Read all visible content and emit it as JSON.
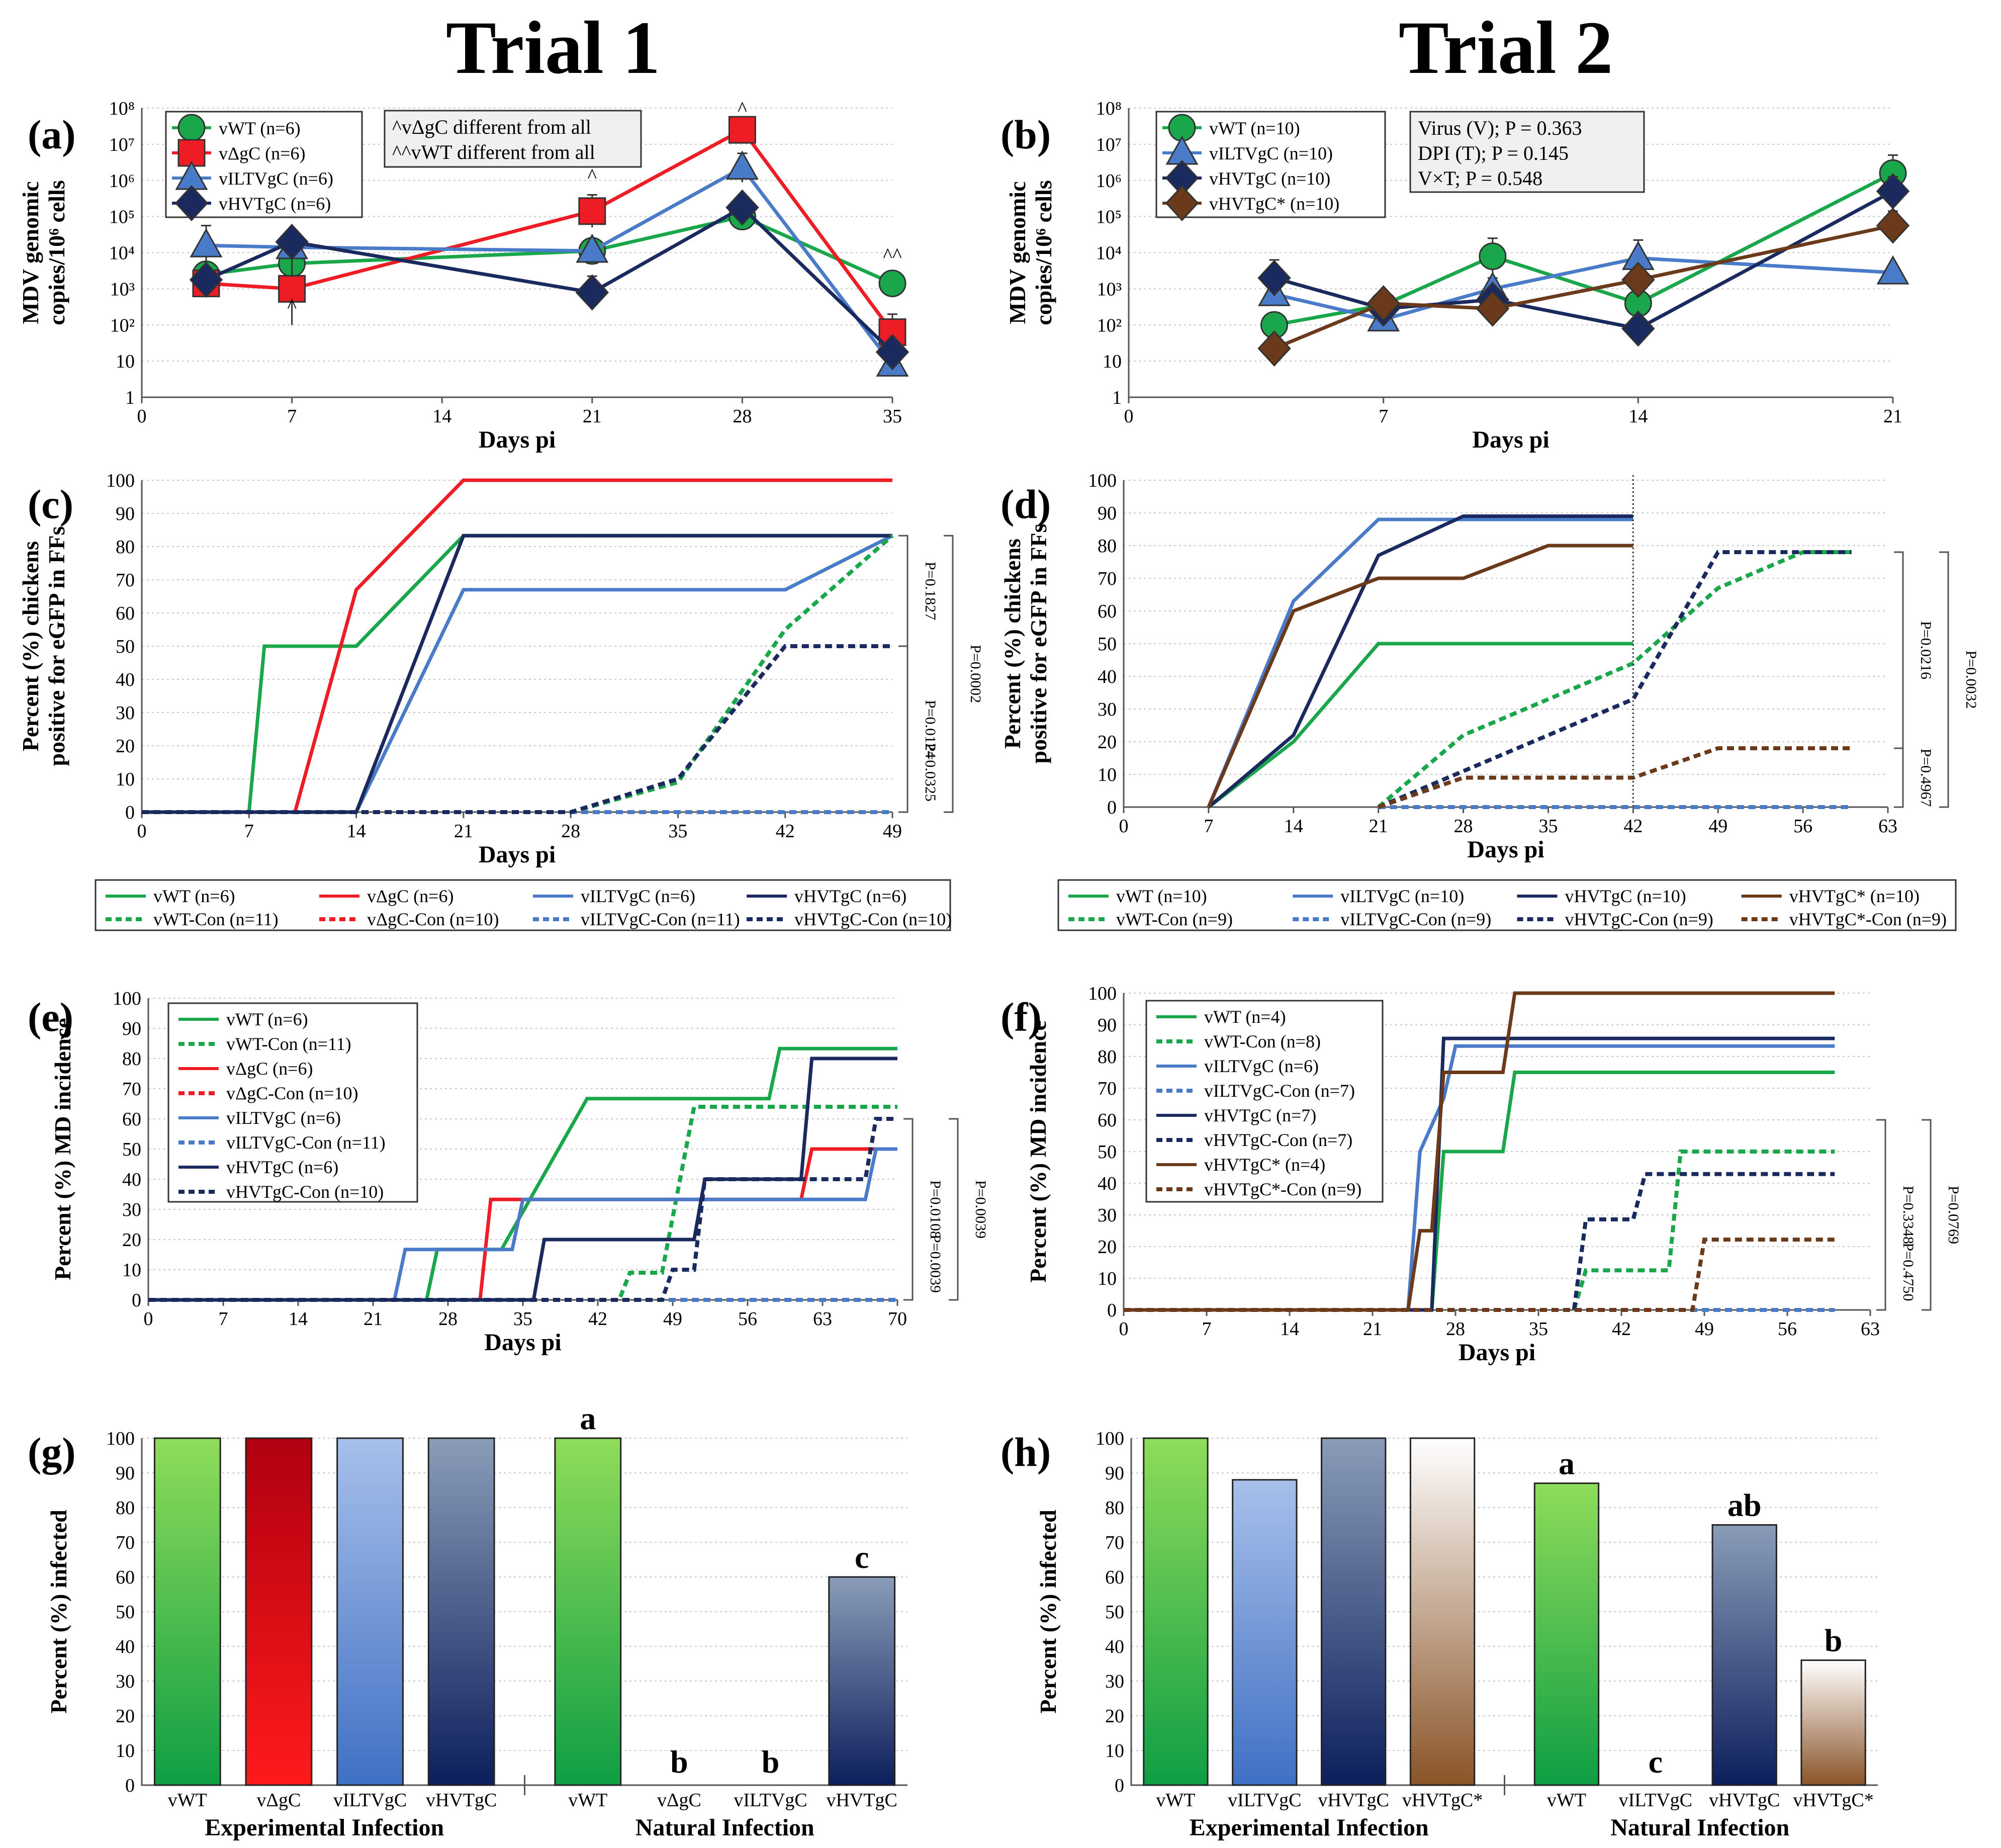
{
  "trial_titles": [
    "Trial 1",
    "Trial 2"
  ],
  "colors": {
    "vWT": "#1aa64a",
    "vDgC": "#ee1c24",
    "vILTVgC": "#4a7bc8",
    "vHVTgC": "#1a2a5e",
    "vHVTgCstar": "#6b3a1a"
  },
  "chart_data": [
    {
      "panel": "(a)",
      "type": "line",
      "scale": "log",
      "xlabel": "Days pi",
      "ylabel": [
        "MDV genomic",
        "copies/10⁶ cells"
      ],
      "xlim": [
        0,
        35
      ],
      "xticks": [
        0,
        7,
        14,
        21,
        28,
        35
      ],
      "yticks": [
        "1",
        "10",
        "10²",
        "10³",
        "10⁴",
        "10⁵",
        "10⁶",
        "10⁷",
        "10⁸"
      ],
      "ylim_log10": [
        0,
        8
      ],
      "series": [
        {
          "name": "vWT (n=6)",
          "key": "vWT",
          "marker": "circle",
          "x": [
            3,
            7,
            21,
            28,
            35
          ],
          "y": [
            3.4,
            3.7,
            4.05,
            5.0,
            3.15
          ],
          "err": [
            0.2,
            0.3,
            0.2,
            0.2,
            0.2
          ]
        },
        {
          "name": "vΔgC (n=6)",
          "key": "vDgC",
          "marker": "square",
          "x": [
            3,
            7,
            21,
            28,
            35
          ],
          "y": [
            3.15,
            3.0,
            5.15,
            7.4,
            1.8
          ],
          "err": [
            0.2,
            1.0,
            0.45,
            0.3,
            0.5
          ]
        },
        {
          "name": "vILTVgC (n=6)",
          "key": "vILTVgC",
          "marker": "triangle",
          "x": [
            3,
            7,
            21,
            28,
            35
          ],
          "y": [
            4.2,
            4.15,
            4.05,
            6.35,
            0.9
          ],
          "err": [
            0.55,
            0.2,
            0.25,
            0.4,
            0.2
          ]
        },
        {
          "name": "vHVTgC (n=6)",
          "key": "vHVTgC",
          "marker": "diamond",
          "x": [
            3,
            7,
            21,
            28,
            35
          ],
          "y": [
            3.25,
            4.3,
            2.9,
            5.25,
            1.25
          ],
          "err": [
            0.2,
            0.3,
            0.45,
            0.3,
            0.2
          ]
        }
      ],
      "annotations": [
        {
          "text": "^",
          "x": 7,
          "y": 2.35
        },
        {
          "text": "^",
          "x": 21,
          "y": 5.95
        },
        {
          "text": "^",
          "x": 28,
          "y": 7.8
        },
        {
          "text": "^^",
          "x": 35,
          "y": 3.75
        }
      ],
      "note": [
        "^vΔgC different from all",
        "^^vWT different from all"
      ]
    },
    {
      "panel": "(b)",
      "type": "line",
      "scale": "log",
      "xlabel": "Days pi",
      "ylabel": [
        "MDV genomic",
        "copies/10⁶ cells"
      ],
      "xlim": [
        0,
        21
      ],
      "xticks": [
        0,
        7,
        14,
        21
      ],
      "yticks": [
        "1",
        "10",
        "10²",
        "10³",
        "10⁴",
        "10⁵",
        "10⁶",
        "10⁷",
        "10⁸"
      ],
      "ylim_log10": [
        0,
        8
      ],
      "series": [
        {
          "name": "vWT (n=10)",
          "key": "vWT",
          "marker": "circle",
          "x": [
            4,
            7,
            10,
            14,
            21
          ],
          "y": [
            2.0,
            2.55,
            3.9,
            2.6,
            6.2
          ],
          "err": [
            0.3,
            0.3,
            0.5,
            0.3,
            0.5
          ]
        },
        {
          "name": "vILTVgC (n=10)",
          "key": "vILTVgC",
          "marker": "triangle",
          "x": [
            4,
            7,
            10,
            14,
            21
          ],
          "y": [
            2.85,
            2.15,
            3.0,
            3.85,
            3.45
          ],
          "err": [
            0.2,
            0.2,
            0.3,
            0.5,
            0.2
          ]
        },
        {
          "name": "vHVTgC (n=10)",
          "key": "vHVTgC",
          "marker": "diamond",
          "x": [
            4,
            7,
            10,
            14,
            21
          ],
          "y": [
            3.3,
            2.45,
            2.7,
            1.9,
            5.7
          ],
          "err": [
            0.5,
            0.2,
            0.3,
            0.2,
            0.4
          ]
        },
        {
          "name": "vHVTgC* (n=10)",
          "key": "vHVTgCstar",
          "marker": "diamond",
          "x": [
            4,
            7,
            10,
            14,
            21
          ],
          "y": [
            1.35,
            2.6,
            2.45,
            3.25,
            4.75
          ],
          "err": [
            0.2,
            0.3,
            0.2,
            0.3,
            0.4
          ]
        }
      ],
      "note": [
        "Virus (V); P = 0.363",
        "DPI (T); P = 0.145",
        "V×T; P = 0.548"
      ]
    },
    {
      "panel": "(c)",
      "type": "line",
      "step": false,
      "xlabel": "Days pi",
      "ylabel": [
        "Percent (%) chickens",
        "positive for eGFP in FFs"
      ],
      "xlim": [
        0,
        49
      ],
      "xticks": [
        0,
        7,
        14,
        21,
        28,
        35,
        42,
        49
      ],
      "ylim": [
        0,
        100
      ],
      "series": [
        {
          "name": "vWT (n=6)",
          "key": "vWT",
          "dash": false,
          "x": [
            0,
            7,
            8,
            14,
            21,
            49
          ],
          "y": [
            0,
            0,
            50,
            50,
            83.3,
            83.3
          ]
        },
        {
          "name": "vΔgC (n=6)",
          "key": "vDgC",
          "dash": false,
          "x": [
            0,
            10,
            14,
            21,
            49
          ],
          "y": [
            0,
            0,
            67,
            100,
            100
          ]
        },
        {
          "name": "vILTVgC (n=6)",
          "key": "vILTVgC",
          "dash": false,
          "x": [
            0,
            14,
            21,
            42,
            49
          ],
          "y": [
            0,
            0,
            67,
            67,
            83.3
          ]
        },
        {
          "name": "vHVTgC (n=6)",
          "key": "vHVTgC",
          "dash": false,
          "x": [
            0,
            14,
            21,
            49
          ],
          "y": [
            0,
            0,
            83.3,
            83.3
          ]
        },
        {
          "name": "vWT-Con (n=11)",
          "key": "vWT",
          "dash": true,
          "x": [
            0,
            28,
            35,
            42,
            49
          ],
          "y": [
            0,
            0,
            9,
            55,
            83.3
          ]
        },
        {
          "name": "vΔgC-Con (n=10)",
          "key": "vDgC",
          "dash": true,
          "x": [
            0,
            49
          ],
          "y": [
            0,
            0
          ]
        },
        {
          "name": "vILTVgC-Con (n=11)",
          "key": "vILTVgC",
          "dash": true,
          "x": [
            0,
            49
          ],
          "y": [
            0,
            0
          ]
        },
        {
          "name": "vHVTgC-Con (n=10)",
          "key": "vHVTgC",
          "dash": true,
          "x": [
            0,
            28,
            35,
            42,
            49
          ],
          "y": [
            0,
            0,
            10,
            50,
            50
          ]
        }
      ],
      "pvalues": [
        "P=0.1827",
        "P=0.0124",
        "P=0.0325",
        "P=0.0002"
      ]
    },
    {
      "panel": "(d)",
      "type": "line",
      "step": false,
      "xlabel": "Days pi",
      "ylabel": [
        "Percent (%) chickens",
        "positive for eGFP in FFs"
      ],
      "xlim": [
        0,
        63
      ],
      "xticks": [
        0,
        7,
        14,
        21,
        28,
        35,
        42,
        49,
        56,
        63
      ],
      "ylim": [
        0,
        100
      ],
      "series": [
        {
          "name": "vWT (n=10)",
          "key": "vWT",
          "dash": false,
          "x": [
            7,
            14,
            21,
            42
          ],
          "y": [
            0,
            20,
            50,
            50
          ]
        },
        {
          "name": "vILTVgC (n=10)",
          "key": "vILTVgC",
          "dash": false,
          "x": [
            7,
            14,
            21,
            28,
            42
          ],
          "y": [
            0,
            63,
            88,
            88,
            88
          ]
        },
        {
          "name": "vHVTgC (n=10)",
          "key": "vHVTgC",
          "dash": false,
          "x": [
            7,
            14,
            21,
            28,
            42
          ],
          "y": [
            0,
            22,
            77,
            89,
            89
          ]
        },
        {
          "name": "vHVTgC* (n=10)",
          "key": "vHVTgCstar",
          "dash": false,
          "x": [
            7,
            14,
            21,
            28,
            35,
            42
          ],
          "y": [
            0,
            60,
            70,
            70,
            80,
            80
          ]
        },
        {
          "name": "vWT-Con (n=9)",
          "key": "vWT",
          "dash": true,
          "x": [
            21,
            28,
            35,
            42,
            49,
            56,
            60
          ],
          "y": [
            0,
            22,
            33,
            44,
            67,
            78,
            78
          ]
        },
        {
          "name": "vILTVgC-Con (n=9)",
          "key": "vILTVgC",
          "dash": true,
          "x": [
            21,
            60
          ],
          "y": [
            0,
            0
          ]
        },
        {
          "name": "vHVTgC-Con (n=9)",
          "key": "vHVTgC",
          "dash": true,
          "x": [
            21,
            28,
            35,
            42,
            49,
            56,
            60
          ],
          "y": [
            0,
            11,
            22,
            33,
            78,
            78,
            78
          ]
        },
        {
          "name": "vHVTgC*-Con (n=9)",
          "key": "vHVTgCstar",
          "dash": true,
          "x": [
            21,
            28,
            35,
            42,
            49,
            56,
            60
          ],
          "y": [
            0,
            9,
            9,
            9,
            18,
            18,
            18
          ]
        }
      ],
      "pvalues": [
        "P=0.0216",
        "P=0.4967",
        "P=0.0032"
      ]
    },
    {
      "panel": "(e)",
      "type": "line",
      "step": true,
      "xlabel": "Days pi",
      "ylabel": [
        "Percent (%) MD incidence"
      ],
      "xlim": [
        0,
        70
      ],
      "xticks": [
        0,
        7,
        14,
        21,
        28,
        35,
        42,
        49,
        56,
        63,
        70
      ],
      "ylim": [
        0,
        100
      ],
      "series": [
        {
          "name": "vWT (n=6)",
          "key": "vWT",
          "dash": false,
          "x": [
            0,
            26,
            27,
            33,
            41,
            58,
            59,
            70
          ],
          "y": [
            0,
            0,
            16.7,
            16.7,
            66.7,
            66.7,
            83.3,
            83.3
          ]
        },
        {
          "name": "vWT-Con (n=11)",
          "key": "vWT",
          "dash": true,
          "x": [
            0,
            44,
            45,
            48,
            51,
            70
          ],
          "y": [
            0,
            0,
            9,
            9,
            64,
            64
          ]
        },
        {
          "name": "vΔgC (n=6)",
          "key": "vDgC",
          "dash": false,
          "x": [
            0,
            31,
            32,
            61,
            62,
            70
          ],
          "y": [
            0,
            0,
            33.3,
            33.3,
            50,
            50
          ]
        },
        {
          "name": "vΔgC-Con (n=10)",
          "key": "vDgC",
          "dash": true,
          "x": [
            0,
            70
          ],
          "y": [
            0,
            0
          ]
        },
        {
          "name": "vILTVgC (n=6)",
          "key": "vILTVgC",
          "dash": false,
          "x": [
            0,
            23,
            24,
            34,
            35,
            67,
            68,
            70
          ],
          "y": [
            0,
            0,
            16.7,
            16.7,
            33.3,
            33.3,
            50,
            50
          ]
        },
        {
          "name": "vILTVgC-Con (n=11)",
          "key": "vILTVgC",
          "dash": true,
          "x": [
            0,
            70
          ],
          "y": [
            0,
            0
          ]
        },
        {
          "name": "vHVTgC (n=6)",
          "key": "vHVTgC",
          "dash": false,
          "x": [
            0,
            36,
            37,
            51,
            52,
            61,
            62,
            70
          ],
          "y": [
            0,
            0,
            20,
            20,
            40,
            40,
            80,
            80
          ]
        },
        {
          "name": "vHVTgC-Con (n=10)",
          "key": "vHVTgC",
          "dash": true,
          "x": [
            0,
            48,
            49,
            51,
            52,
            67,
            68,
            70
          ],
          "y": [
            0,
            0,
            10,
            10,
            40,
            40,
            60,
            60
          ]
        }
      ],
      "pvalues": [
        "P=0.0108",
        "P=0.0039",
        "P=0.0039"
      ]
    },
    {
      "panel": "(f)",
      "type": "line",
      "step": true,
      "xlabel": "Days pi",
      "ylabel": [
        "Percent (%) MD incidence"
      ],
      "xlim": [
        0,
        63
      ],
      "xticks": [
        0,
        7,
        14,
        21,
        28,
        35,
        42,
        49,
        56,
        63
      ],
      "ylim": [
        0,
        100
      ],
      "series": [
        {
          "name": "vWT (n=4)",
          "key": "vWT",
          "dash": false,
          "x": [
            0,
            26,
            27,
            32,
            33,
            60
          ],
          "y": [
            0,
            0,
            50,
            50,
            75,
            75
          ]
        },
        {
          "name": "vWT-Con (n=8)",
          "key": "vWT",
          "dash": true,
          "x": [
            0,
            38,
            39,
            46,
            47,
            60
          ],
          "y": [
            0,
            0,
            12.5,
            12.5,
            50,
            50
          ]
        },
        {
          "name": "vILTVgC (n=6)",
          "key": "vILTVgC",
          "dash": false,
          "x": [
            0,
            24,
            25,
            27,
            28,
            60
          ],
          "y": [
            0,
            0,
            50,
            66.7,
            83.3,
            83.3
          ]
        },
        {
          "name": "vILTVgC-Con (n=7)",
          "key": "vILTVgC",
          "dash": true,
          "x": [
            0,
            60
          ],
          "y": [
            0,
            0
          ]
        },
        {
          "name": "vHVTgC (n=7)",
          "key": "vHVTgC",
          "dash": false,
          "x": [
            0,
            26,
            27,
            60
          ],
          "y": [
            0,
            0,
            85.7,
            85.7
          ]
        },
        {
          "name": "vHVTgC-Con (n=7)",
          "key": "vHVTgC",
          "dash": true,
          "x": [
            0,
            38,
            39,
            43,
            44,
            60
          ],
          "y": [
            0,
            0,
            28.6,
            28.6,
            42.9,
            42.9
          ]
        },
        {
          "name": "vHVTgC* (n=4)",
          "key": "vHVTgCstar",
          "dash": false,
          "x": [
            0,
            24,
            25,
            26,
            27,
            32,
            33,
            60
          ],
          "y": [
            0,
            0,
            25,
            25,
            75,
            75,
            100,
            100
          ]
        },
        {
          "name": "vHVTgC*-Con (n=9)",
          "key": "vHVTgCstar",
          "dash": true,
          "x": [
            0,
            48,
            49,
            60
          ],
          "y": [
            0,
            0,
            22.2,
            22.2
          ]
        }
      ],
      "pvalues": [
        "P=0.3348",
        "P=0.4750",
        "P=0.0769"
      ]
    },
    {
      "panel": "(g)",
      "type": "bar",
      "ylabel": [
        "Percent (%) infected"
      ],
      "ylim": [
        0,
        100
      ],
      "groups": [
        "Experimental Infection",
        "Natural Infection"
      ],
      "categories": [
        "vWT",
        "vΔgC",
        "vILTVgC",
        "vHVTgC",
        "vWT",
        "vΔgC",
        "vILTVgC",
        "vHVTgC"
      ],
      "keys": [
        "vWT",
        "vDgC",
        "vILTVgC",
        "vHVTgC",
        "vWT",
        "vDgC",
        "vILTVgC",
        "vHVTgC"
      ],
      "values": [
        100,
        100,
        100,
        100,
        100,
        0,
        0,
        60
      ],
      "letters": [
        "",
        "",
        "",
        "",
        "a",
        "b",
        "b",
        "c"
      ]
    },
    {
      "panel": "(h)",
      "type": "bar",
      "ylabel": [
        "Percent (%) infected"
      ],
      "ylim": [
        0,
        100
      ],
      "groups": [
        "Experimental Infection",
        "Natural Infection"
      ],
      "categories": [
        "vWT",
        "vILTVgC",
        "vHVTgC",
        "vHVTgC*",
        "vWT",
        "vILTVgC",
        "vHVTgC",
        "vHVTgC*"
      ],
      "keys": [
        "vWT",
        "vILTVgC",
        "vHVTgC",
        "vHVTgCstar",
        "vWT",
        "vILTVgC",
        "vHVTgC",
        "vHVTgCstar"
      ],
      "values": [
        100,
        88,
        100,
        100,
        87,
        0,
        75,
        36
      ],
      "letters": [
        "",
        "",
        "",
        "",
        "a",
        "c",
        "ab",
        "b"
      ]
    }
  ]
}
